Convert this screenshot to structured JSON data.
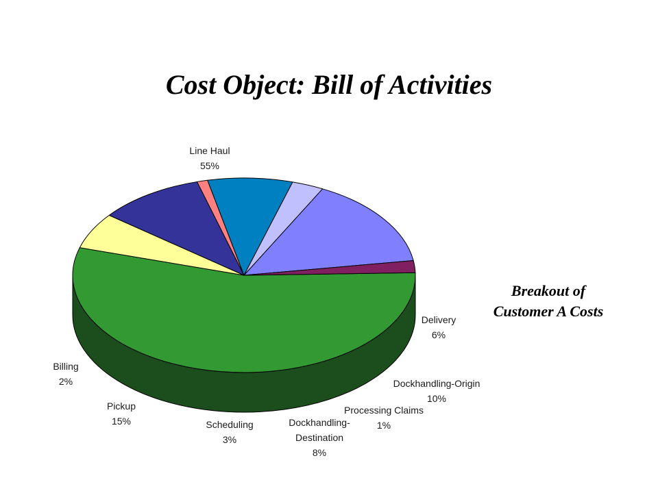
{
  "slide": {
    "title": "Cost Object:  Bill of Activities",
    "side_note_line1": "Breakout of",
    "side_note_line2": "Customer A Costs"
  },
  "chart_data": {
    "type": "pie",
    "style": "3d-exploded-none",
    "slices": [
      {
        "name": "Line Haul",
        "label_lines": [
          "Line Haul"
        ],
        "pct_label": "55%",
        "value": 55,
        "color": "#339933",
        "side_color": "#1c4d1c"
      },
      {
        "name": "Delivery",
        "label_lines": [
          "Delivery"
        ],
        "pct_label": "6%",
        "value": 6,
        "color": "#ffff99",
        "side_color": "#808040"
      },
      {
        "name": "Dockhandling-Origin",
        "label_lines": [
          "Dockhandling-Origin"
        ],
        "pct_label": "10%",
        "value": 10,
        "color": "#333399",
        "side_color": "#1a1a4d"
      },
      {
        "name": "Processing Claims",
        "label_lines": [
          "Processing Claims"
        ],
        "pct_label": "1%",
        "value": 1,
        "color": "#ff8080",
        "side_color": "#804040"
      },
      {
        "name": "Dockhandling-Destination",
        "label_lines": [
          "Dockhandling-",
          "Destination"
        ],
        "pct_label": "8%",
        "value": 8,
        "color": "#0080c0",
        "side_color": "#004060"
      },
      {
        "name": "Scheduling",
        "label_lines": [
          "Scheduling"
        ],
        "pct_label": "3%",
        "value": 3,
        "color": "#c0c0ff",
        "side_color": "#606080"
      },
      {
        "name": "Pickup",
        "label_lines": [
          "Pickup"
        ],
        "pct_label": "15%",
        "value": 15,
        "color": "#8080ff",
        "side_color": "#404080"
      },
      {
        "name": "Billing",
        "label_lines": [
          "Billing"
        ],
        "pct_label": "2%",
        "value": 2,
        "color": "#802060",
        "side_color": "#401030"
      }
    ]
  }
}
